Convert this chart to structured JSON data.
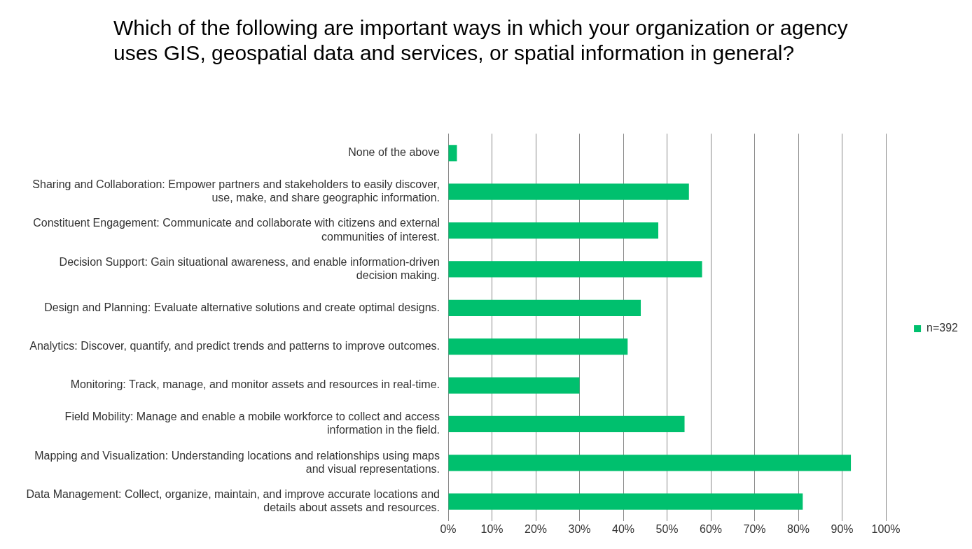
{
  "chart_data": {
    "type": "bar",
    "orientation": "horizontal",
    "title": "Which of the following are important ways in which your organization or agency uses GIS, geospatial data and services, or spatial information in general?",
    "categories": [
      "None of the above",
      "Sharing and Collaboration: Empower partners and stakeholders to easily discover, use, make, and share geographic information.",
      "Constituent Engagement: Communicate and collaborate with citizens and external communities of interest.",
      "Decision Support: Gain situational awareness, and enable information-driven decision making.",
      "Design and Planning: Evaluate alternative solutions and create optimal designs.",
      "Analytics: Discover, quantify, and predict trends and patterns to improve outcomes.",
      "Monitoring: Track, manage, and monitor assets and resources in real-time.",
      "Field Mobility: Manage and enable a mobile workforce to collect and access information in the field.",
      "Mapping and Visualization: Understanding locations and relationships using maps and visual representations.",
      "Data Management: Collect, organize, maintain, and improve accurate locations and details about assets and resources."
    ],
    "series": [
      {
        "name": "n=392",
        "color": "#00c06e",
        "values": [
          2,
          55,
          48,
          58,
          44,
          41,
          30,
          54,
          92,
          81
        ]
      }
    ],
    "xlim": [
      0,
      100
    ],
    "xticks": [
      {
        "value": 0,
        "label": "0%"
      },
      {
        "value": 10,
        "label": "10%"
      },
      {
        "value": 20,
        "label": "20%"
      },
      {
        "value": 30,
        "label": "30%"
      },
      {
        "value": 40,
        "label": "40%"
      },
      {
        "value": 50,
        "label": "50%"
      },
      {
        "value": 60,
        "label": "60%"
      },
      {
        "value": 70,
        "label": "70%"
      },
      {
        "value": 80,
        "label": "80%"
      },
      {
        "value": 90,
        "label": "90%"
      },
      {
        "value": 100,
        "label": "100%"
      }
    ],
    "grid": "x",
    "legend": "right"
  }
}
